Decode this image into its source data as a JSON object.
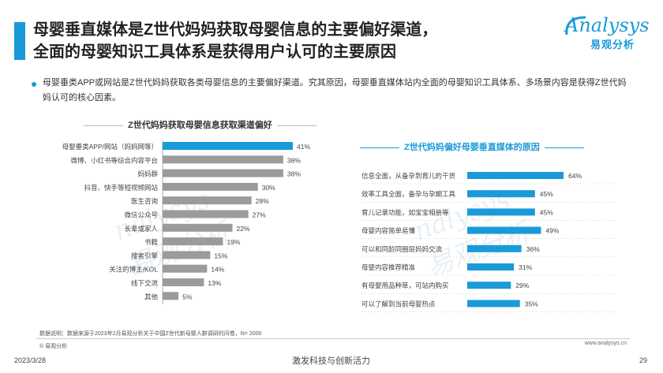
{
  "title": {
    "line1": "母婴垂直媒体是Z世代妈妈获取母婴信息的主要偏好渠道，",
    "line2": "全面的母婴知识工具体系是获得用户认可的主要原因"
  },
  "logo": {
    "brand": "nalysys",
    "brand_initial": "A",
    "cn": "易观分析"
  },
  "summary": "母婴垂类APP或网站是Z世代妈妈获取各类母婴信息的主要偏好渠道。究其原因，母婴垂直媒体站内全面的母婴知识工具体系、多场景内容是获得Z世代妈妈认可的核心因素。",
  "watermark": {
    "text1": "nalysys",
    "text2": "易观分析"
  },
  "colors": {
    "accent": "#1a9ad9",
    "bar_highlight": "#1a9ad9",
    "bar_default": "#9b9b9b"
  },
  "chart_data": [
    {
      "type": "bar",
      "orientation": "horizontal",
      "title": "Z世代妈妈获取母婴信息获取渠道偏好",
      "categories": [
        "母婴垂类APP/网站（妈妈网等）",
        "微博、小红书等综合内容平台",
        "妈妈群",
        "抖音、快手等短视频网站",
        "医生咨询",
        "微信公众号",
        "长辈或家人",
        "书籍",
        "搜索引擎",
        "关注的博主/KOL",
        "线下交流",
        "其他"
      ],
      "values": [
        41,
        38,
        38,
        30,
        28,
        27,
        22,
        19,
        15,
        14,
        13,
        5
      ],
      "labels": [
        "41%",
        "38%",
        "38%",
        "30%",
        "28%",
        "27%",
        "22%",
        "19%",
        "15%",
        "14%",
        "13%",
        "5%"
      ],
      "highlight_index": 0,
      "xlim": [
        0,
        45
      ]
    },
    {
      "type": "bar",
      "orientation": "horizontal",
      "title": "Z世代妈妈偏好母婴垂直媒体的原因",
      "categories": [
        "信息全面，从备孕到育儿的干货",
        "效率工具全面，备孕与孕期工具",
        "育儿记录功能，如宝宝相册等",
        "母婴内容简单易懂",
        "可以和同龄同圈层妈妈交流",
        "母婴内容推荐精准",
        "有母婴用品种草，可站内购买",
        "可以了解到当前母婴热点"
      ],
      "values": [
        64,
        45,
        45,
        49,
        36,
        31,
        29,
        35
      ],
      "labels": [
        "64%",
        "45%",
        "45%",
        "49%",
        "36%",
        "31%",
        "29%",
        "35%"
      ],
      "xlim": [
        0,
        70
      ]
    }
  ],
  "footer": {
    "note": "数据说明：数据来源于2023年2月易观分析关于中国Z世代新母婴人群调研的问卷，N= 2000",
    "copyright": "© 易观分析",
    "site": "www.analysys.cn",
    "date": "2023/3/28",
    "slogan": "激发科技与创新活力",
    "page": "29"
  }
}
